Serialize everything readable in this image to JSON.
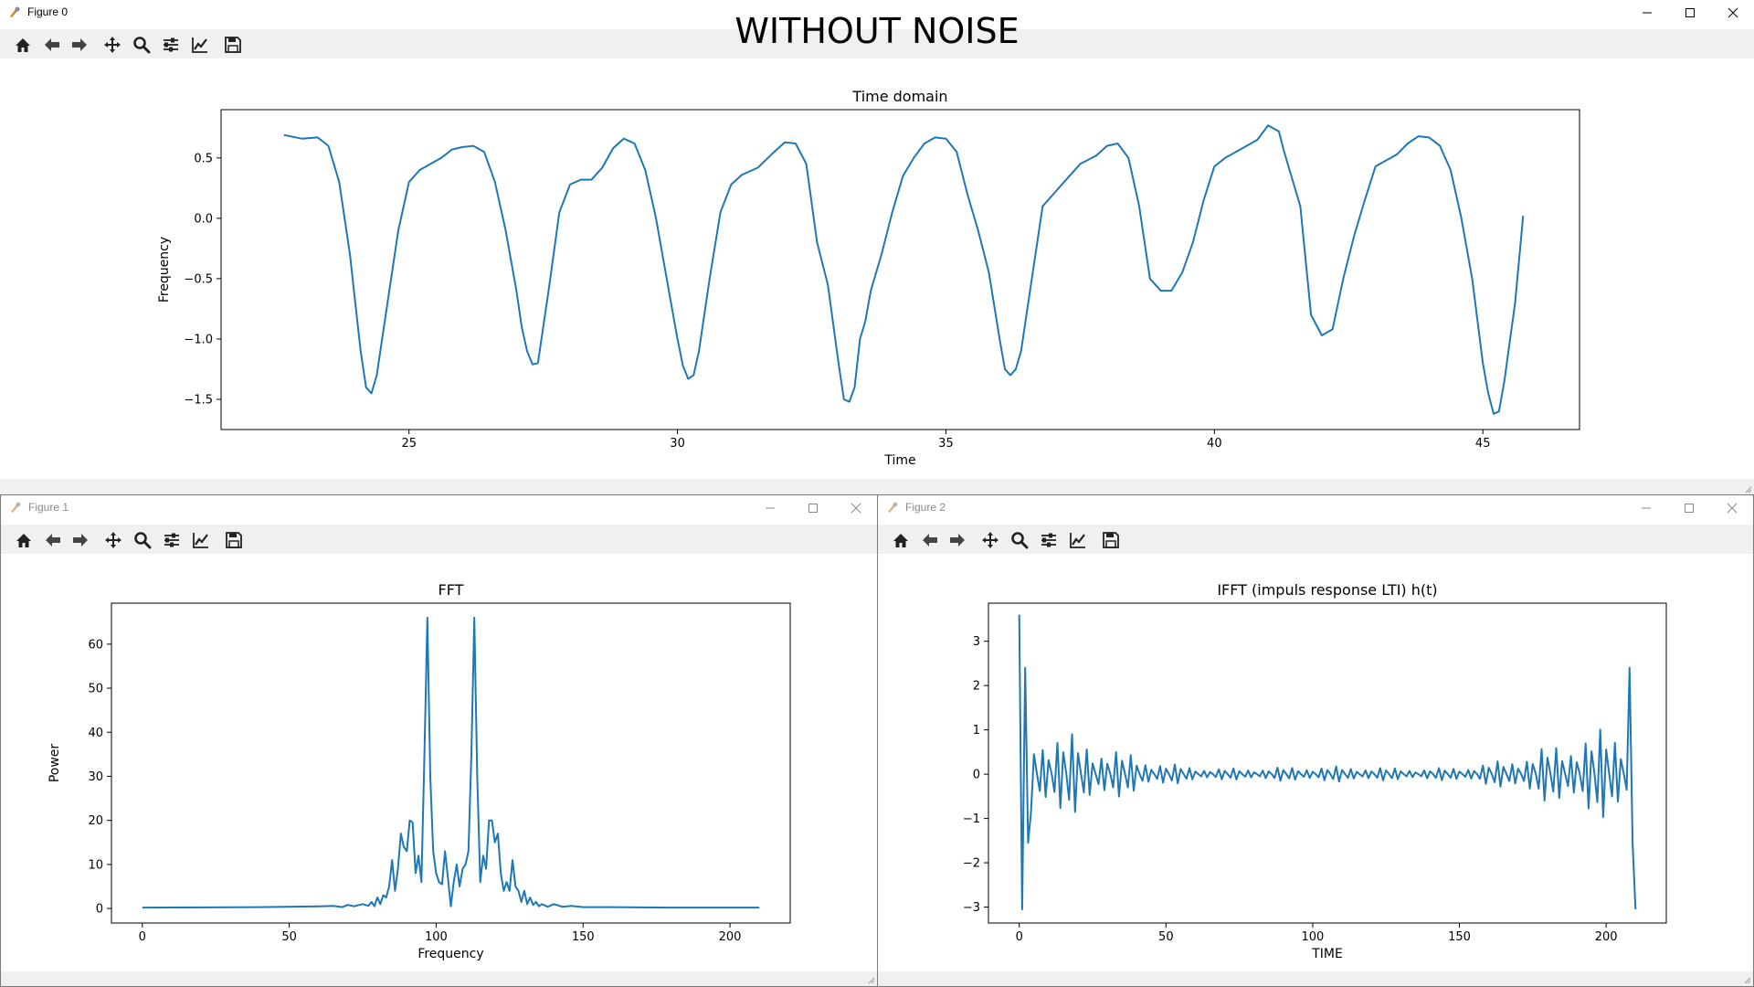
{
  "windows": [
    {
      "title": "Figure 0",
      "active": true,
      "suptitle": "WITHOUT NOISE",
      "chart_data": {
        "type": "line",
        "title": "Time domain",
        "xlabel": "Time",
        "ylabel": "Frequency",
        "xlim": [
          21.5,
          46.8
        ],
        "ylim": [
          -1.75,
          0.9
        ],
        "xticks": [
          25,
          30,
          35,
          40,
          45
        ],
        "xtick_labels": [
          "25",
          "30",
          "35",
          "40",
          "45"
        ],
        "yticks": [
          0.5,
          0.0,
          -0.5,
          -1.0,
          -1.5
        ],
        "ytick_labels": [
          "0.5",
          "0.0",
          "−0.5",
          "−1.0",
          "−1.5"
        ],
        "color": "#1f77b4",
        "series": [
          {
            "x": [
              22.67,
              23.0,
              23.3,
              23.5,
              23.7,
              23.9,
              24.0,
              24.1,
              24.2,
              24.3,
              24.4,
              24.6,
              24.8,
              25.0,
              25.2,
              25.6,
              25.8,
              26.0,
              26.2,
              26.4,
              26.6,
              26.8,
              27.0,
              27.1,
              27.2,
              27.3,
              27.4,
              27.6,
              27.8,
              28.0,
              28.2,
              28.4,
              28.6,
              28.8,
              29.0,
              29.2,
              29.4,
              29.6,
              29.8,
              30.0,
              30.1,
              30.2,
              30.3,
              30.4,
              30.6,
              30.8,
              31.0,
              31.2,
              31.5,
              31.8,
              32.0,
              32.2,
              32.4,
              32.6,
              32.8,
              33.0,
              33.1,
              33.2,
              33.3,
              33.4,
              33.5,
              33.6,
              33.8,
              34.0,
              34.2,
              34.4,
              34.6,
              34.8,
              35.0,
              35.2,
              35.4,
              35.6,
              35.8,
              36.0,
              36.1,
              36.2,
              36.3,
              36.4,
              36.6,
              36.8,
              37.0,
              37.2,
              37.5,
              37.8,
              38.0,
              38.2,
              38.4,
              38.6,
              38.8,
              39.0,
              39.2,
              39.4,
              39.6,
              39.8,
              40.0,
              40.2,
              40.4,
              40.6,
              40.8,
              41.0,
              41.2,
              41.3,
              41.4,
              41.6,
              41.8,
              42.0,
              42.2,
              42.4,
              42.6,
              42.8,
              43.0,
              43.2,
              43.4,
              43.6,
              43.8,
              44.0,
              44.2,
              44.4,
              44.6,
              44.8,
              45.0,
              45.1,
              45.2,
              45.3,
              45.4,
              45.6,
              45.75
            ],
            "y": [
              0.69,
              0.66,
              0.67,
              0.6,
              0.3,
              -0.3,
              -0.7,
              -1.1,
              -1.4,
              -1.45,
              -1.3,
              -0.7,
              -0.1,
              0.3,
              0.4,
              0.5,
              0.57,
              0.59,
              0.6,
              0.55,
              0.3,
              -0.1,
              -0.6,
              -0.9,
              -1.1,
              -1.21,
              -1.2,
              -0.6,
              0.05,
              0.28,
              0.32,
              0.32,
              0.42,
              0.58,
              0.66,
              0.62,
              0.4,
              0.0,
              -0.5,
              -1.0,
              -1.22,
              -1.33,
              -1.3,
              -1.1,
              -0.5,
              0.05,
              0.28,
              0.36,
              0.42,
              0.55,
              0.63,
              0.62,
              0.45,
              -0.2,
              -0.55,
              -1.2,
              -1.5,
              -1.52,
              -1.4,
              -1.0,
              -0.85,
              -0.6,
              -0.3,
              0.05,
              0.35,
              0.5,
              0.62,
              0.67,
              0.66,
              0.55,
              0.2,
              -0.1,
              -0.45,
              -1.0,
              -1.25,
              -1.3,
              -1.25,
              -1.1,
              -0.5,
              0.1,
              0.2,
              0.3,
              0.45,
              0.52,
              0.6,
              0.62,
              0.5,
              0.1,
              -0.5,
              -0.6,
              -0.6,
              -0.45,
              -0.2,
              0.15,
              0.43,
              0.5,
              0.55,
              0.6,
              0.65,
              0.77,
              0.72,
              0.55,
              0.4,
              0.1,
              -0.8,
              -0.97,
              -0.92,
              -0.5,
              -0.15,
              0.15,
              0.43,
              0.48,
              0.53,
              0.62,
              0.68,
              0.67,
              0.6,
              0.4,
              0.0,
              -0.5,
              -1.2,
              -1.45,
              -1.62,
              -1.6,
              -1.35,
              -0.7,
              0.02
            ]
          }
        ]
      }
    },
    {
      "title": "Figure 1",
      "active": false,
      "chart_data": {
        "type": "line",
        "title": "FFT",
        "xlabel": "Frequency",
        "ylabel": "Power",
        "xlim": [
          -10.5,
          220.5
        ],
        "ylim": [
          -3.3,
          69.3
        ],
        "xticks": [
          0,
          50,
          100,
          150,
          200
        ],
        "xtick_labels": [
          "0",
          "50",
          "100",
          "150",
          "200"
        ],
        "yticks": [
          0,
          10,
          20,
          30,
          40,
          50,
          60
        ],
        "ytick_labels": [
          "0",
          "10",
          "20",
          "30",
          "40",
          "50",
          "60"
        ],
        "color": "#1f77b4",
        "series": [
          {
            "x": [
              0,
              20,
              40,
              60,
              65,
              68,
              70,
              72,
              75,
              77,
              78,
              79,
              80,
              81,
              82,
              83,
              84,
              85,
              86,
              87,
              88,
              89,
              90,
              91,
              92,
              93,
              94,
              95,
              96,
              97,
              98,
              99,
              100,
              101,
              102,
              103,
              104,
              105,
              106,
              107,
              108,
              109,
              110,
              111,
              112,
              113,
              114,
              115,
              116,
              117,
              118,
              119,
              120,
              121,
              122,
              123,
              124,
              125,
              126,
              127,
              128,
              129,
              130,
              131,
              132,
              133,
              134,
              135,
              136,
              138,
              140,
              143,
              146,
              150,
              160,
              180,
              210
            ],
            "y": [
              0.2,
              0.25,
              0.3,
              0.5,
              0.6,
              0.3,
              0.8,
              0.5,
              1.0,
              0.6,
              1.5,
              0.5,
              2.5,
              1.0,
              3.0,
              2.5,
              5.0,
              11.0,
              4.0,
              9.0,
              17.0,
              14.0,
              13.0,
              20.0,
              19.5,
              8.0,
              12.0,
              6.0,
              35.0,
              66.0,
              30.0,
              13.0,
              8.0,
              6.0,
              5.5,
              13.0,
              7.0,
              0.5,
              6.0,
              10.0,
              5.0,
              9.0,
              10.0,
              13.0,
              35.0,
              66.0,
              30.0,
              6.0,
              12.0,
              9.0,
              20.0,
              20.0,
              15.0,
              17.0,
              8.0,
              4.0,
              6.0,
              4.0,
              11.0,
              5.0,
              4.0,
              1.5,
              4.0,
              1.0,
              2.5,
              0.8,
              1.5,
              0.5,
              1.0,
              0.4,
              1.0,
              0.4,
              0.6,
              0.3,
              0.3,
              0.2,
              0.2
            ]
          }
        ]
      }
    },
    {
      "title": "Figure 2",
      "active": false,
      "chart_data": {
        "type": "line",
        "title": "IFFT (impuls response LTI) h(t)",
        "xlabel": "TIME",
        "ylabel": "",
        "xlim": [
          -10.5,
          220.5
        ],
        "ylim": [
          -3.36,
          3.86
        ],
        "xticks": [
          0,
          50,
          100,
          150,
          200
        ],
        "xtick_labels": [
          "0",
          "50",
          "100",
          "150",
          "200"
        ],
        "yticks": [
          3,
          2,
          1,
          0,
          -1,
          -2,
          -3
        ],
        "ytick_labels": [
          "3",
          "2",
          "1",
          "0",
          "−1",
          "−2",
          "−3"
        ],
        "color": "#1f77b4",
        "generator": {
          "n": 210,
          "edge_values": [
            3.6,
            -3.05,
            2.4,
            -1.55
          ],
          "freq": 0.4,
          "comps": [
            {
              "c": 0,
              "s": 40,
              "a": 1.15
            },
            {
              "c": 210,
              "s": 40,
              "a": 1.15
            },
            {
              "c": 105,
              "s": 40,
              "a": 0.18
            }
          ]
        }
      }
    }
  ],
  "toolbar_icons": [
    "home-icon",
    "back-arrow-icon",
    "forward-arrow-icon",
    "pan-move-icon",
    "zoom-icon",
    "subplots-config-icon",
    "edit-axis-icon",
    "save-icon"
  ]
}
